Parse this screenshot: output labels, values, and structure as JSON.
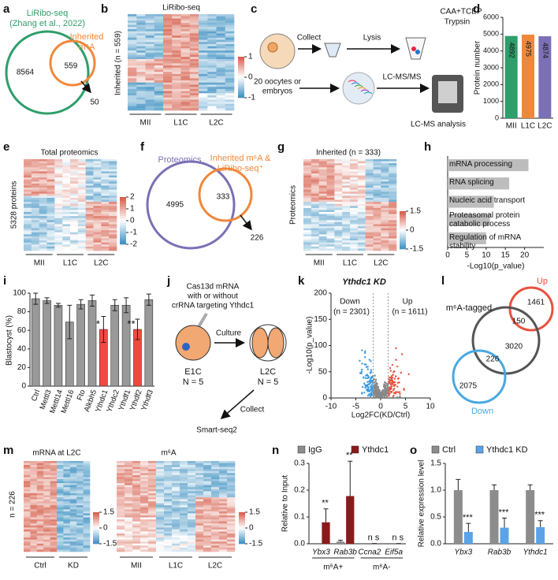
{
  "a": {
    "label": "a",
    "title": "LiRibo-seq",
    "subtitle": "(Zhang et al., 2022)",
    "set_b": "Inherited",
    "set_b_sub": "m⁶A",
    "only_a": 8564,
    "overlap": 559,
    "only_b": 50
  },
  "b": {
    "label": "b",
    "title": "LiRibo-seq",
    "ylabel": "Inherited (n = 559)",
    "categories": [
      "MII",
      "L1C",
      "L2C"
    ],
    "colorbar_ticks": [
      1,
      0,
      -1
    ]
  },
  "c": {
    "label": "c",
    "collect": "Collect",
    "lysis": "Lysis",
    "reagent1": "CAA+TCEP",
    "reagent2": "Trypsin",
    "sample1": "20 oocytes or",
    "sample2": "embryos",
    "method": "LC-MS/MS",
    "analysis": "LC-MS analysis"
  },
  "d": {
    "label": "d",
    "type": "bar",
    "ylabel": "Protein number",
    "categories": [
      "MII",
      "L1C",
      "L2C"
    ],
    "values": [
      4892,
      4975,
      4874
    ],
    "colors": [
      "#2e9e6b",
      "#f0883a",
      "#7b6fb5"
    ],
    "ylim": [
      0,
      6000
    ],
    "yticks": [
      0,
      1000,
      2000,
      3000,
      4000,
      5000,
      6000
    ]
  },
  "e": {
    "label": "e",
    "title": "Total proteomics",
    "ylabel": "5328 proteins",
    "categories": [
      "MII",
      "L1C",
      "L2C"
    ],
    "colorbar_ticks": [
      2,
      1,
      0,
      -1,
      -2
    ]
  },
  "f": {
    "label": "f",
    "set_a": "Proteomics",
    "set_b1": "Inherited m⁶A &",
    "set_b2": "LiRibo-seq⁺",
    "only_a": 4995,
    "overlap": 333,
    "only_b": 226
  },
  "g": {
    "label": "g",
    "title": "Inherited (n = 333)",
    "ylabel": "Proteomics",
    "categories": [
      "MII",
      "L1C",
      "L2C"
    ],
    "colorbar_ticks": [
      1.5,
      0,
      -1.5
    ]
  },
  "h": {
    "label": "h",
    "type": "hbar",
    "categories": [
      "mRNA processing",
      "RNA splicing",
      "Nucleic acid transport",
      "Proteasomal protein catabolic process",
      "Regulation of mRNA stability"
    ],
    "values": [
      21,
      16,
      12,
      11,
      10
    ],
    "color": "#bdbdbd",
    "xlabel": "-Log10(p_value)",
    "xlim": [
      0,
      25
    ],
    "xticks": [
      0,
      5,
      10,
      15,
      20
    ]
  },
  "i": {
    "label": "i",
    "type": "bar",
    "ylabel": "Blastocyst (%)",
    "categories": [
      "Ctrl",
      "Mettl3",
      "Mettl14",
      "Mettl16",
      "Fto",
      "Alkbh5",
      "Ythdc1",
      "Ythdc2",
      "Ythdf1",
      "Ythdf2",
      "Ythdf3"
    ],
    "values": [
      94,
      92,
      87,
      69,
      88,
      92,
      61,
      87,
      87,
      61,
      93
    ],
    "errors": [
      6,
      3,
      2,
      18,
      5,
      6,
      14,
      6,
      8,
      11,
      6
    ],
    "colors": [
      "#999999",
      "#999999",
      "#999999",
      "#999999",
      "#999999",
      "#999999",
      "#f04a3e",
      "#999999",
      "#999999",
      "#f04a3e",
      "#999999"
    ],
    "annotations": [
      null,
      null,
      null,
      null,
      null,
      null,
      "*",
      null,
      null,
      "**",
      null
    ],
    "ylim": [
      0,
      100
    ],
    "yticks": [
      0,
      20,
      40,
      60,
      80,
      100
    ]
  },
  "j": {
    "label": "j",
    "line1": "Cas13d mRNA",
    "line2": "with or without",
    "line3": "crRNA targeting Ythdc1",
    "culture": "Culture",
    "stage1": "E1C",
    "n1": "N = 5",
    "stage2": "L2C",
    "n2": "N = 5",
    "collect": "Collect",
    "method": "Smart-seq2"
  },
  "k": {
    "label": "k",
    "type": "scatter",
    "title": "Ythdc1 KD",
    "xlabel": "Log2FC(KD/Ctrl)",
    "ylabel": "-Log10(p_value)",
    "down": "Down",
    "down_n": "(n = 2301)",
    "up": "Up",
    "up_n": "(n = 1611)",
    "xlim": [
      -10,
      10
    ],
    "ylim": [
      0,
      200
    ],
    "xticks": [
      -10,
      -5,
      0,
      5,
      10
    ],
    "yticks": [
      0,
      50,
      100,
      150,
      200
    ],
    "colors": {
      "down": "#3a9be0",
      "up": "#e8513f",
      "ns": "#888888"
    }
  },
  "l": {
    "label": "l",
    "set_center": "m⁶A-tagged",
    "set_up": "Up",
    "set_down": "Down",
    "only_up": 1461,
    "up_center": 150,
    "only_center": 3020,
    "down_center": 226,
    "only_down": 2075
  },
  "m": {
    "label": "m",
    "title1": "mRNA at L2C",
    "title2": "m⁶A",
    "ylabel": "n = 226",
    "categories1": [
      "Ctrl",
      "KD"
    ],
    "categories2": [
      "MII",
      "L1C",
      "L2C"
    ],
    "colorbar_ticks": [
      1.5,
      0,
      -1.5
    ]
  },
  "n": {
    "label": "n",
    "type": "bar",
    "ylabel": "Relative to Input",
    "categories": [
      "Ybx3",
      "Rab3b",
      "Ccna2",
      "Eif5a"
    ],
    "groups": [
      "m⁶A+",
      "m⁶A-"
    ],
    "series": [
      {
        "name": "IgG",
        "color": "#8c8c8c",
        "values": [
          0,
          0.008,
          0,
          0
        ],
        "errors": [
          0,
          0.005,
          0,
          0
        ]
      },
      {
        "name": "Ythdc1",
        "color": "#8b1a1a",
        "values": [
          0.08,
          0.178,
          0.001,
          0.001
        ],
        "errors": [
          0.05,
          0.13,
          0,
          0
        ]
      }
    ],
    "annotations": [
      "**",
      "**",
      "n s",
      "n s"
    ],
    "ylim": [
      0,
      0.3
    ],
    "yticks": [
      {
        "value": 0,
        "label": "0.0"
      },
      {
        "value": 0.1,
        "label": "0.1"
      },
      {
        "value": 0.2,
        "label": "0.2"
      },
      {
        "value": 0.3,
        "label": "0.3"
      }
    ]
  },
  "o": {
    "label": "o",
    "type": "bar",
    "ylabel": "Relative expression level",
    "categories": [
      "Ybx3",
      "Rab3b",
      "Ythdc1"
    ],
    "series": [
      {
        "name": "Ctrl",
        "color": "#8c8c8c",
        "values": [
          1,
          1,
          1
        ],
        "errors": [
          0.2,
          0.1,
          0.1
        ]
      },
      {
        "name": "Ythdc1 KD",
        "color": "#5ba3e6",
        "values": [
          0.22,
          0.3,
          0.31
        ],
        "errors": [
          0.16,
          0.18,
          0.12
        ]
      }
    ],
    "annotations": [
      "***",
      "***",
      "***"
    ],
    "ylim": [
      0,
      1.5
    ],
    "yticks": [
      {
        "value": 0,
        "label": "0.0"
      },
      {
        "value": 0.5,
        "label": "0.5"
      },
      {
        "value": 1,
        "label": "1.0"
      },
      {
        "value": 1.5,
        "label": "1.5"
      }
    ]
  }
}
